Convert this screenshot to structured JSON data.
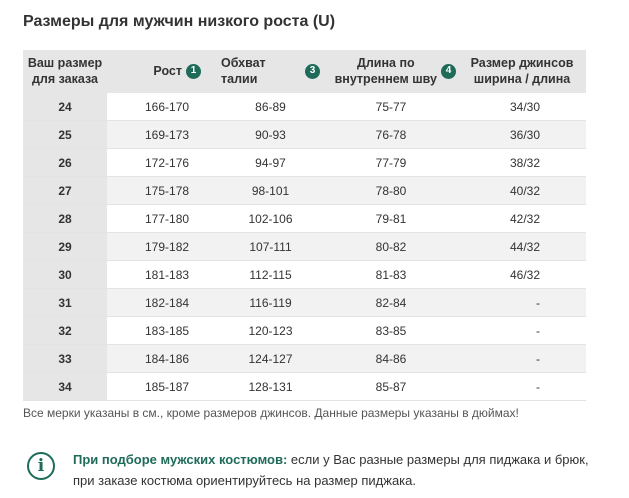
{
  "title": "Размеры для мужчин низкого роста (U)",
  "table": {
    "headers": {
      "size_line1": "Ваш размер",
      "size_line2": "для заказа",
      "height": "Рост",
      "height_badge": "1",
      "waist": "Обхват талии",
      "waist_badge": "3",
      "inseam_line1": "Длина по",
      "inseam_line2": "внутреннем шву",
      "inseam_badge": "4",
      "jeans_line1": "Размер джинсов",
      "jeans_line2": "ширина / длина"
    },
    "rows": [
      {
        "size": "24",
        "height": "166-170",
        "waist": "86-89",
        "inseam": "75-77",
        "jeans": "34/30"
      },
      {
        "size": "25",
        "height": "169-173",
        "waist": "90-93",
        "inseam": "76-78",
        "jeans": "36/30"
      },
      {
        "size": "26",
        "height": "172-176",
        "waist": "94-97",
        "inseam": "77-79",
        "jeans": "38/32"
      },
      {
        "size": "27",
        "height": "175-178",
        "waist": "98-101",
        "inseam": "78-80",
        "jeans": "40/32"
      },
      {
        "size": "28",
        "height": "177-180",
        "waist": "102-106",
        "inseam": "79-81",
        "jeans": "42/32"
      },
      {
        "size": "29",
        "height": "179-182",
        "waist": "107-111",
        "inseam": "80-82",
        "jeans": "44/32"
      },
      {
        "size": "30",
        "height": "181-183",
        "waist": "112-115",
        "inseam": "81-83",
        "jeans": "46/32"
      },
      {
        "size": "31",
        "height": "182-184",
        "waist": "116-119",
        "inseam": "82-84",
        "jeans": "-"
      },
      {
        "size": "32",
        "height": "183-185",
        "waist": "120-123",
        "inseam": "83-85",
        "jeans": "-"
      },
      {
        "size": "33",
        "height": "184-186",
        "waist": "124-127",
        "inseam": "84-86",
        "jeans": "-"
      },
      {
        "size": "34",
        "height": "185-187",
        "waist": "128-131",
        "inseam": "85-87",
        "jeans": "-"
      }
    ]
  },
  "footnote": "Все мерки указаны в см., кроме размеров джинсов. Данные размеры указаны в дюймах!",
  "info": {
    "icon": "info-icon",
    "bold": "При подборе мужских костюмов:",
    "text": " если у Вас разные размеры для пиджака и брюк, при заказе костюма ориентируйтесь на размер пиджака."
  },
  "colors": {
    "accent": "#1f6b5a",
    "header_bg": "#e6e6e6",
    "stripe_bg": "#f2f2f2"
  }
}
